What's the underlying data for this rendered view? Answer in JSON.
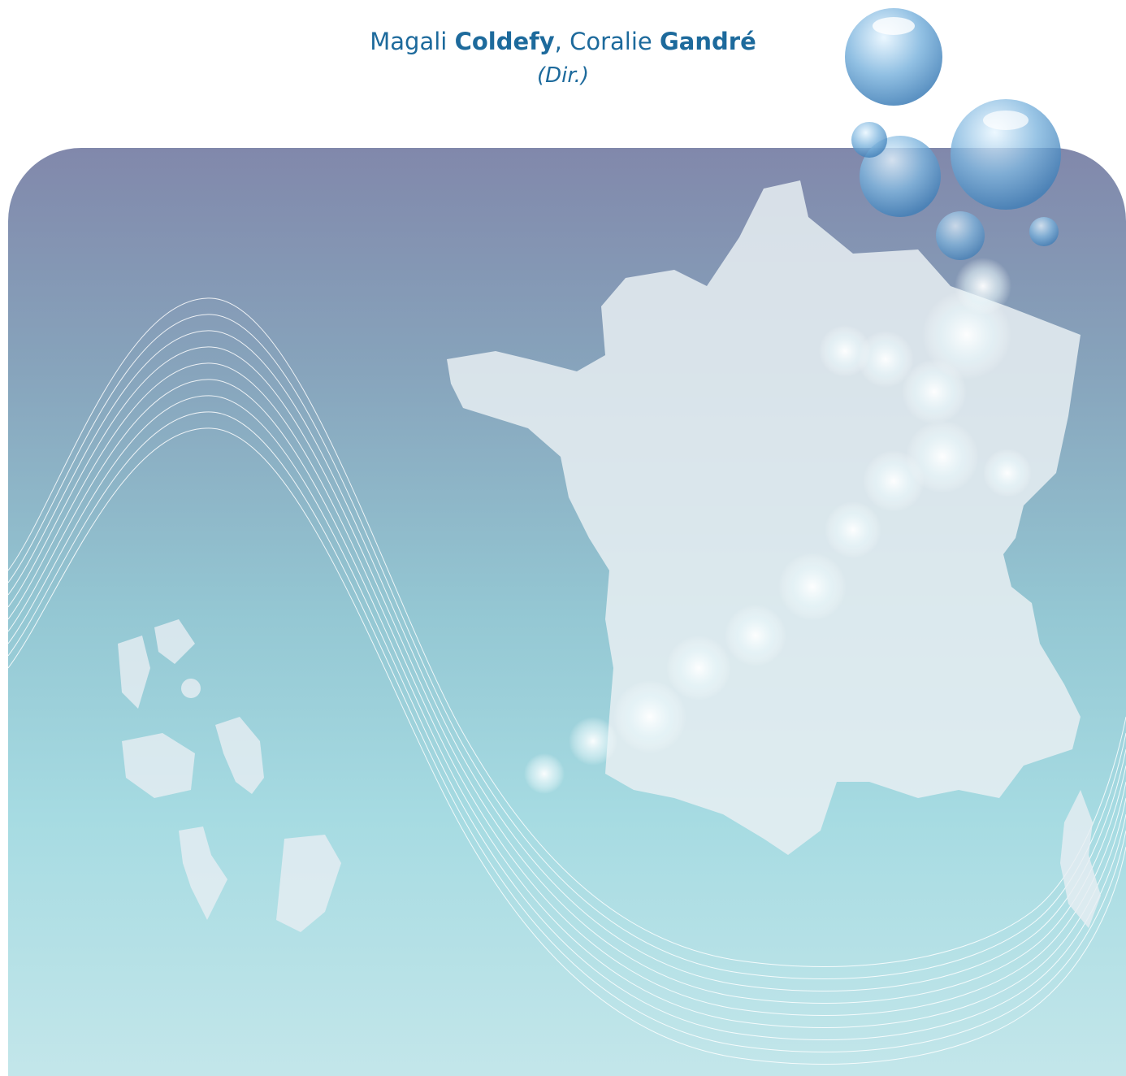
{
  "authors": {
    "a1_first": "Magali",
    "a1_last": "Coldefy",
    "sep": ", ",
    "a2_first": "Coralie",
    "a2_last": "Gandré",
    "role": "(Dir.)"
  },
  "colors": {
    "author_text": "#1d6a9c",
    "panel_top": "#8188ab",
    "panel_bottom": "#c3e6ea",
    "map_fill": "#e7eef2"
  }
}
